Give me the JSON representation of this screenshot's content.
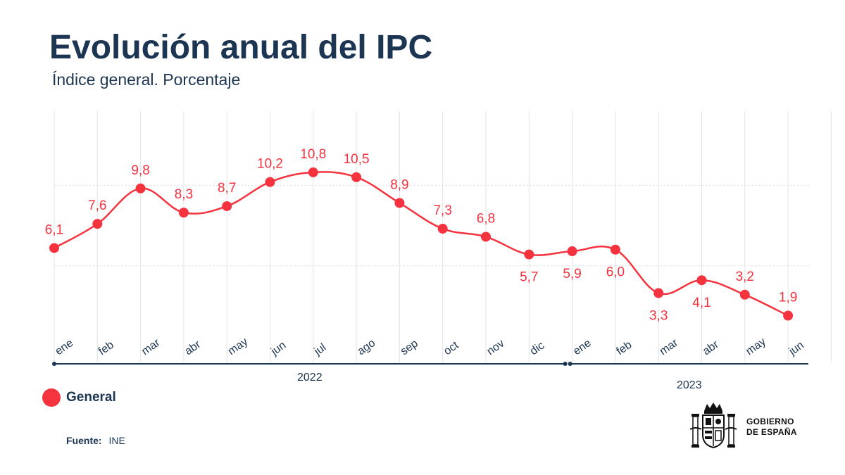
{
  "header": {
    "title": "Evolución anual del IPC",
    "subtitle": "Índice general. Porcentaje"
  },
  "legend": {
    "label": "General"
  },
  "source": {
    "label": "Fuente:",
    "value": "INE"
  },
  "logo": {
    "line1": "GOBIERNO",
    "line2": "DE ESPAÑA"
  },
  "colors": {
    "series": "#f5333f",
    "axis": "#1c3552",
    "grid": "#e3e3e3",
    "text": "#1c3552"
  },
  "chart_data": {
    "type": "line",
    "title": "Evolución anual del IPC",
    "subtitle": "Índice general. Porcentaje",
    "categories": [
      "ene",
      "feb",
      "mar",
      "abr",
      "may",
      "jun",
      "jul",
      "ago",
      "sep",
      "oct",
      "nov",
      "dic",
      "ene",
      "feb",
      "mar",
      "abr",
      "may",
      "jun"
    ],
    "years": [
      {
        "label": "2022",
        "start": 0,
        "end": 11
      },
      {
        "label": "2023",
        "start": 12,
        "end": 17
      }
    ],
    "series": [
      {
        "name": "General",
        "values": [
          6.1,
          7.6,
          9.8,
          8.3,
          8.7,
          10.2,
          10.8,
          10.5,
          8.9,
          7.3,
          6.8,
          5.7,
          5.9,
          6.0,
          3.3,
          4.1,
          3.2,
          1.9
        ],
        "labels": [
          "6,1",
          "7,6",
          "9,8",
          "8,3",
          "8,7",
          "10,2",
          "10,8",
          "10,5",
          "8,9",
          "7,3",
          "6,8",
          "5,7",
          "5,9",
          "6,0",
          "3,3",
          "4,1",
          "3,2",
          "1,9"
        ],
        "label_positions": [
          "above",
          "above",
          "above",
          "above",
          "above",
          "above",
          "above",
          "above",
          "above",
          "above",
          "above",
          "below",
          "below",
          "below",
          "below",
          "below",
          "above",
          "above"
        ]
      }
    ],
    "ylim": [
      0,
      14.6
    ],
    "gridlines": [
      5,
      10
    ],
    "legend_position": "bottom-left"
  }
}
